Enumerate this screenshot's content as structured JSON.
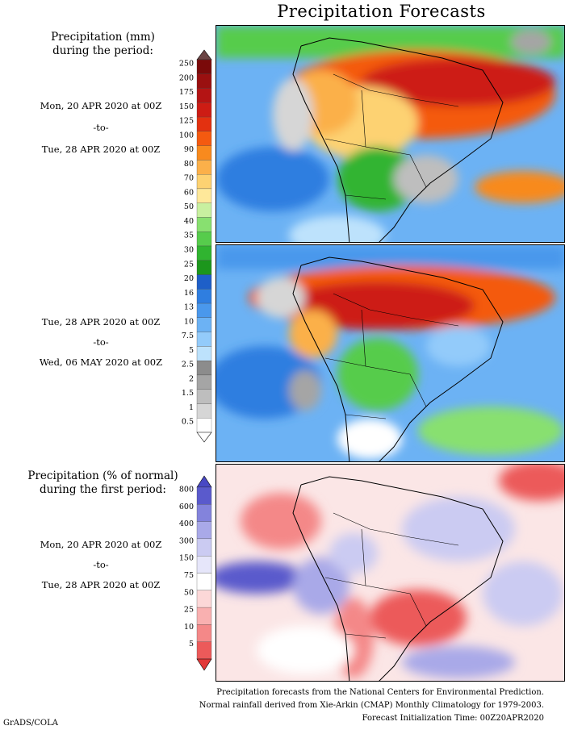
{
  "title": "Precipitation Forecasts",
  "panel1": {
    "heading_line1": "Precipitation (mm)",
    "heading_line2": "during the period:",
    "start": "Mon, 20 APR 2020 at 00Z",
    "to": "-to-",
    "end": "Tue, 28 APR 2020 at 00Z"
  },
  "panel2": {
    "start": "Tue, 28 APR 2020 at 00Z",
    "to": "-to-",
    "end": "Wed, 06 MAY 2020 at 00Z"
  },
  "panel3": {
    "heading_line1": "Precipitation (% of normal)",
    "heading_line2": "during the first period:",
    "start": "Mon, 20 APR 2020 at 00Z",
    "to": "-to-",
    "end": "Tue, 28 APR 2020 at 00Z"
  },
  "precip_scale": {
    "labels": [
      "250",
      "200",
      "175",
      "150",
      "125",
      "100",
      "90",
      "80",
      "70",
      "60",
      "50",
      "40",
      "35",
      "30",
      "25",
      "20",
      "16",
      "13",
      "10",
      "7.5",
      "5",
      "2.5",
      "2",
      "1.5",
      "1",
      "0.5"
    ],
    "colors": [
      "#7a0a0a",
      "#9a1010",
      "#b41414",
      "#cd1c14",
      "#e33110",
      "#f45a10",
      "#f88a1e",
      "#fbb04a",
      "#fdd272",
      "#fee89a",
      "#c8f0a0",
      "#88e070",
      "#56cc4c",
      "#30b430",
      "#1c961c",
      "#1e5fc8",
      "#2f7ee0",
      "#4a98ec",
      "#6cb2f4",
      "#93cbfa",
      "#bde2fc",
      "#8c8c8c",
      "#a5a5a5",
      "#bebebe",
      "#d6d6d6",
      "#ffffff"
    ],
    "top_color": "#6b4444"
  },
  "pct_scale": {
    "labels": [
      "800",
      "600",
      "400",
      "300",
      "150",
      "75",
      "50",
      "25",
      "10",
      "5"
    ],
    "colors": [
      "#5a5acc",
      "#8383dc",
      "#a9a9e8",
      "#cbcbf2",
      "#e6e6fa",
      "#ffffff",
      "#fcd8d8",
      "#f9b0b0",
      "#f48888",
      "#ec5a5a"
    ],
    "top_color": "#4848c4",
    "bottom_color": "#e23838"
  },
  "footer": {
    "line1": "Precipitation forecasts from the National Centers for Environmental Prediction.",
    "line2": "Normal rainfall derived from Xie-Arkin (CMAP) Monthly Climatology for 1979-2003.",
    "line3": "Forecast Initialization Time: 00Z20APR2020"
  },
  "credit": "GrADS/COLA"
}
